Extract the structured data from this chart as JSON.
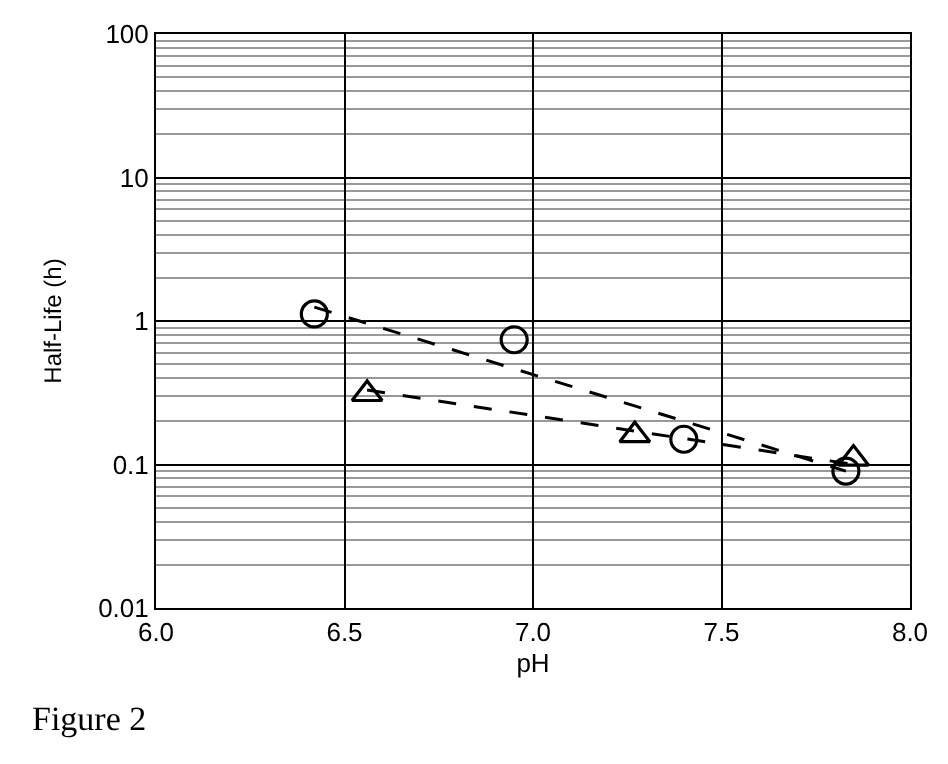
{
  "chart_data": {
    "type": "scatter",
    "xlabel": "pH",
    "ylabel": "Half-Life (h)",
    "log": "y",
    "grid": true,
    "xlim": [
      6.0,
      8.0
    ],
    "xticks": [
      {
        "value": 6.0,
        "label": "6.0"
      },
      {
        "value": 6.5,
        "label": "6.5"
      },
      {
        "value": 7.0,
        "label": "7.0"
      },
      {
        "value": 7.5,
        "label": "7.5"
      },
      {
        "value": 8.0,
        "label": "8.0"
      }
    ],
    "ylim": [
      0.01,
      100
    ],
    "yticks": [
      0.01,
      0.1,
      1,
      10,
      100
    ],
    "annotations": [
      "Figure 2"
    ],
    "series": [
      {
        "marker": "circle",
        "color": "#000000",
        "x": [
          6.42,
          6.95,
          7.4,
          7.83
        ],
        "values": [
          1.12,
          0.74,
          0.15,
          0.09
        ]
      },
      {
        "marker": "triangle",
        "color": "#000000",
        "x": [
          6.56,
          7.27,
          7.85
        ],
        "values": [
          0.31,
          0.16,
          0.11
        ]
      },
      {
        "type": "line",
        "line_style": "dashed",
        "color": "#000000",
        "x": [
          6.42,
          7.83
        ],
        "values": [
          1.25,
          0.09
        ]
      },
      {
        "type": "line",
        "line_style": "dashed",
        "color": "#000000",
        "x": [
          6.56,
          7.85
        ],
        "values": [
          0.33,
          0.1
        ]
      }
    ]
  }
}
